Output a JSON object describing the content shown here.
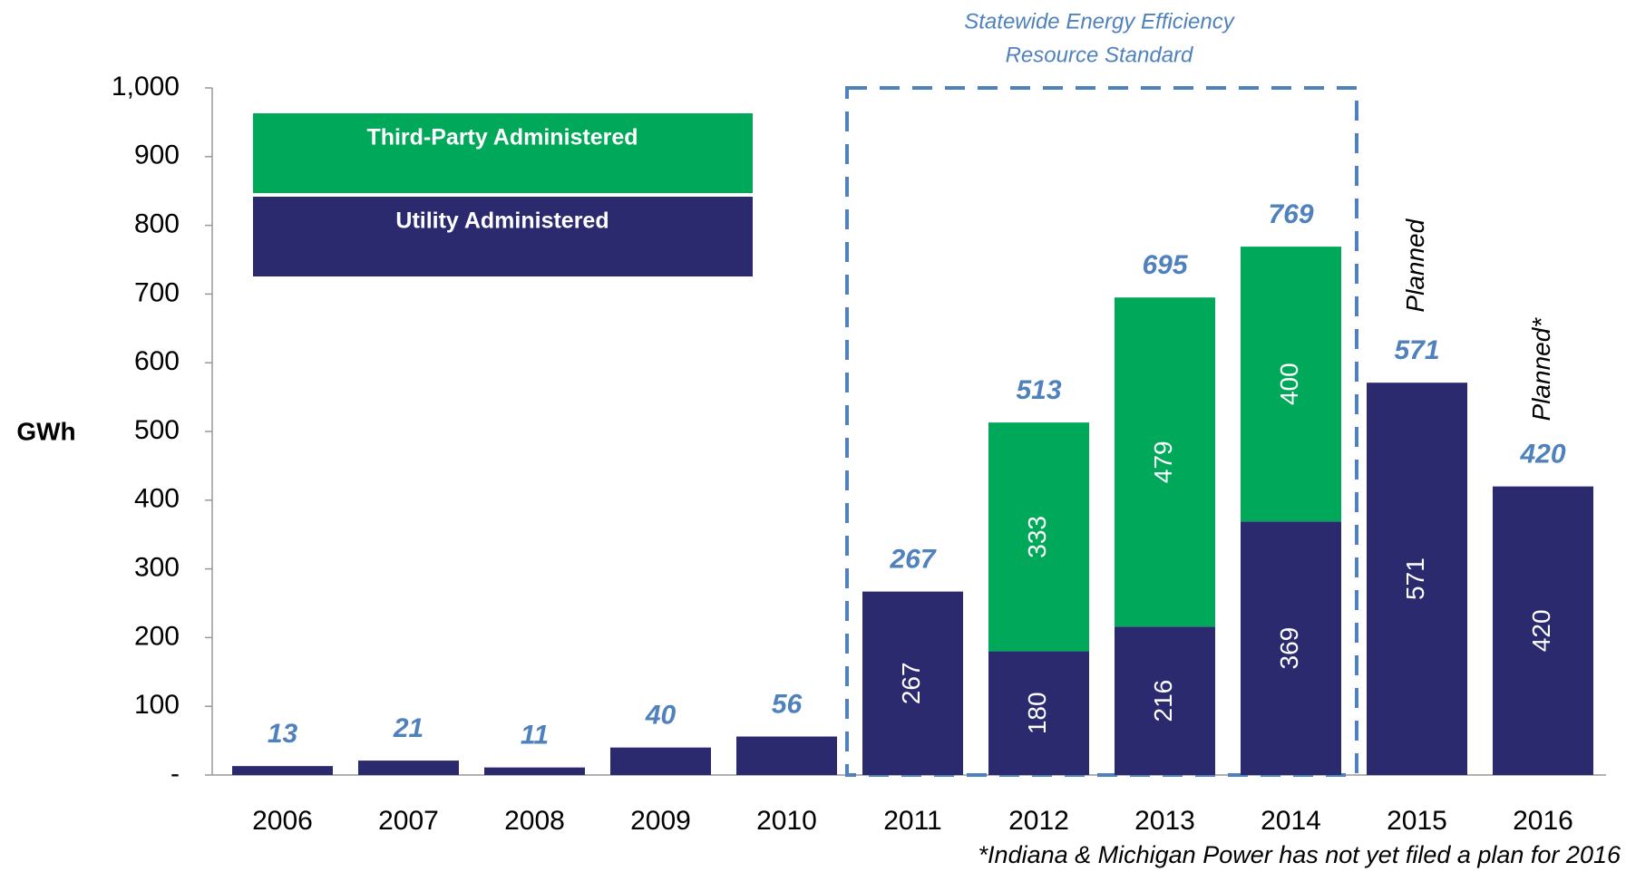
{
  "chart_data": {
    "type": "stacked_bar",
    "y_label": "GWh",
    "categories": [
      "2006",
      "2007",
      "2008",
      "2009",
      "2010",
      "2011",
      "2012",
      "2013",
      "2014",
      "2015",
      "2016"
    ],
    "series": [
      {
        "name": "Utility Administered",
        "color": "#2b2a6e",
        "values": [
          13,
          21,
          11,
          40,
          56,
          267,
          180,
          216,
          369,
          571,
          420
        ]
      },
      {
        "name": "Third-Party Administered",
        "color": "#00a85a",
        "values": [
          null,
          null,
          null,
          null,
          null,
          null,
          333,
          479,
          400,
          null,
          null
        ]
      }
    ],
    "totals": [
      13,
      21,
      11,
      40,
      56,
      267,
      513,
      695,
      769,
      571,
      420
    ],
    "total_color": "#4f81bd",
    "category_notes": [
      null,
      null,
      null,
      null,
      null,
      null,
      null,
      null,
      null,
      "Planned",
      "Planned*"
    ],
    "annotation": [
      "Statewide Energy Efficiency",
      "Resource Standard"
    ],
    "footnote": "*Indiana & Michigan Power has not yet filed a plan for 2016",
    "ylim": [
      0,
      1000
    ],
    "yticks": [
      {
        "value": 0,
        "label": "-"
      },
      100,
      200,
      300,
      400,
      500,
      600,
      700,
      800,
      900,
      {
        "value": 1000,
        "label": "1,000"
      }
    ],
    "grid": false
  }
}
